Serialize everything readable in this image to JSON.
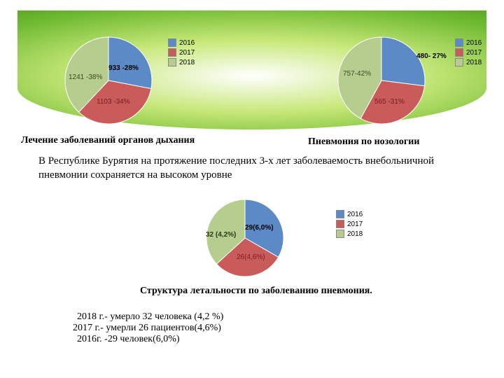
{
  "colors": {
    "c2016": "#5b8ac6",
    "c2017": "#c95b5b",
    "c2018": "#b7cd8f"
  },
  "legend": {
    "y2016": "2016",
    "y2017": "2017",
    "y2018": "2018"
  },
  "chart1": {
    "type": "pie",
    "title": "Лечение заболеваний органов дыхания",
    "slices": [
      {
        "key": "2016",
        "value": 28,
        "label": "933 -28%"
      },
      {
        "key": "2017",
        "value": 34,
        "label": "1103 -34%"
      },
      {
        "key": "2018",
        "value": 38,
        "label": "1241 -38%"
      }
    ]
  },
  "chart2": {
    "type": "pie",
    "title": "Пневмония по нозологии",
    "slices": [
      {
        "key": "2016",
        "value": 27,
        "label": "480- 27%"
      },
      {
        "key": "2017",
        "value": 31,
        "label": "565 -31%"
      },
      {
        "key": "2018",
        "value": 42,
        "label": "757-42%"
      }
    ]
  },
  "chart3": {
    "type": "pie",
    "title": "Структура летальности по заболеванию пневмония.",
    "slices": [
      {
        "key": "2016",
        "value": 33.3,
        "label": "29(6,0%)"
      },
      {
        "key": "2017",
        "value": 29.9,
        "label": "26(4,6%)"
      },
      {
        "key": "2018",
        "value": 36.8,
        "label": "32 (4,2%)"
      }
    ]
  },
  "paragraph": "В Республике Бурятия на протяжение последних 3-х лет заболеваемость внебольничной пневмонии сохраняется на  высоком уровне",
  "stats": {
    "l1": "2018 г.- умерло 32 человека (4,2 %)",
    "l2": "2017 г.- умерли 26 пациентов(4,6%)",
    "l3": "2016г. -29 человек(6,0%)"
  }
}
